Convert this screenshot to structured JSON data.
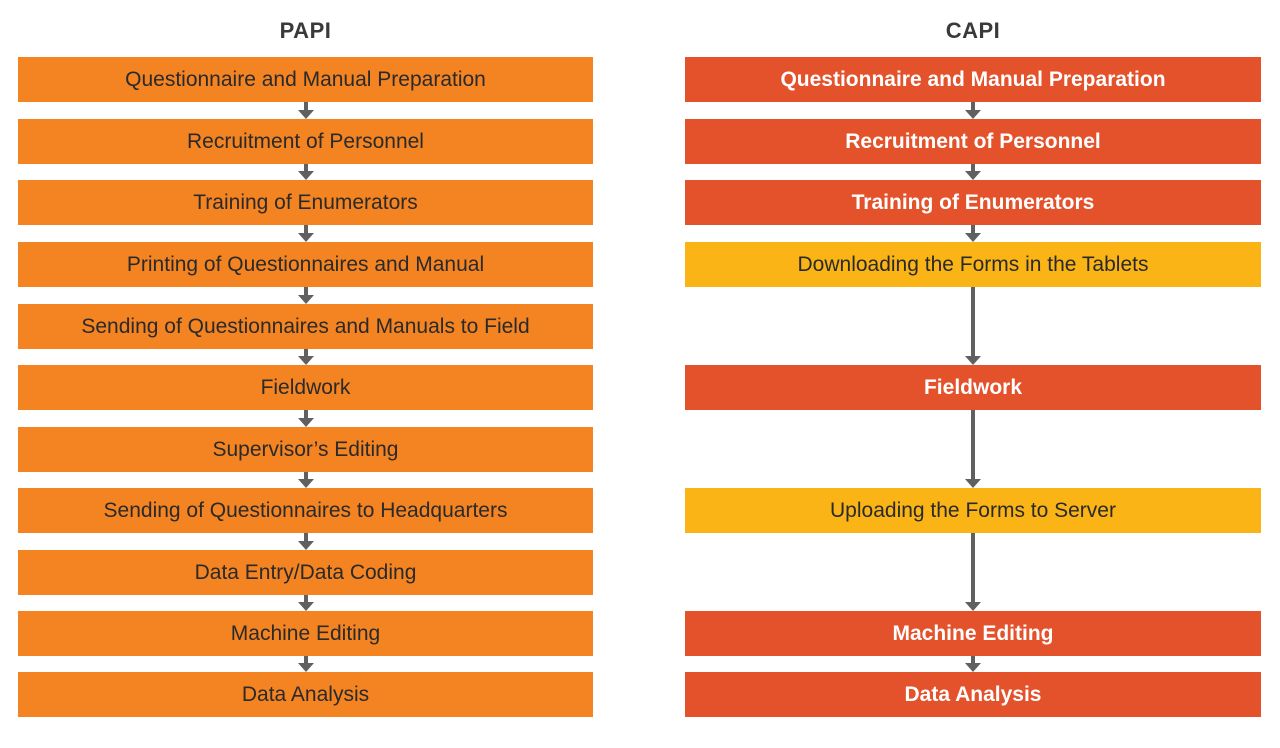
{
  "papi": {
    "title": "PAPI",
    "steps": [
      "Questionnaire and Manual Preparation",
      "Recruitment of Personnel",
      "Training of Enumerators",
      "Printing of Questionnaires and Manual",
      "Sending of Questionnaires and Manuals to Field",
      "Fieldwork",
      "Supervisor’s Editing",
      "Sending of Questionnaires to Headquarters",
      "Data Entry/Data Coding",
      "Machine Editing",
      "Data Analysis"
    ]
  },
  "capi": {
    "title": "CAPI",
    "steps": [
      "Questionnaire and Manual Preparation",
      "Recruitment of Personnel",
      "Training of Enumerators",
      "Downloading the Forms in the Tablets",
      "Fieldwork",
      "Uploading the Forms to Server",
      "Machine Editing",
      "Data Analysis"
    ]
  },
  "colors": {
    "papi_box": "#f48322",
    "capi_red": "#e4522b",
    "capi_yellow": "#fbb416",
    "arrow": "#606060"
  }
}
